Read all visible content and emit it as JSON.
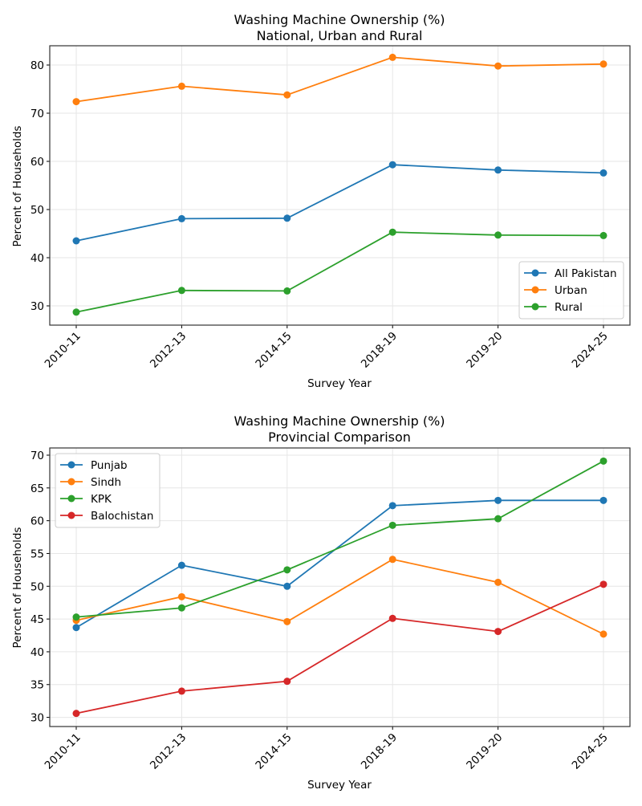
{
  "chart_data": [
    {
      "type": "line",
      "title": "Washing Machine Ownership (%)",
      "subtitle": "National, Urban and Rural",
      "xlabel": "Survey Year",
      "ylabel": "Percent of Households",
      "categories": [
        "2010-11",
        "2012-13",
        "2014-15",
        "2018-19",
        "2019-20",
        "2024-25"
      ],
      "ylim": [
        26,
        84
      ],
      "yticks": [
        30,
        40,
        50,
        60,
        70,
        80
      ],
      "grid": true,
      "legend_position": "bottom-right",
      "series": [
        {
          "name": "All Pakistan",
          "color": "#1f77b4",
          "values": [
            43.5,
            48.1,
            48.2,
            59.3,
            58.2,
            57.6
          ]
        },
        {
          "name": "Urban",
          "color": "#ff7f0e",
          "values": [
            72.4,
            75.6,
            73.8,
            81.6,
            79.8,
            80.2
          ]
        },
        {
          "name": "Rural",
          "color": "#2ca02c",
          "values": [
            28.7,
            33.2,
            33.1,
            45.3,
            44.7,
            44.6
          ]
        }
      ]
    },
    {
      "type": "line",
      "title": "Washing Machine Ownership (%)",
      "subtitle": "Provincial Comparison",
      "xlabel": "Survey Year",
      "ylabel": "Percent of Households",
      "categories": [
        "2010-11",
        "2012-13",
        "2014-15",
        "2018-19",
        "2019-20",
        "2024-25"
      ],
      "ylim": [
        28.6,
        71.1
      ],
      "yticks": [
        30,
        35,
        40,
        45,
        50,
        55,
        60,
        65,
        70
      ],
      "grid": true,
      "legend_position": "top-left",
      "series": [
        {
          "name": "Punjab",
          "color": "#1f77b4",
          "values": [
            43.7,
            53.2,
            50.0,
            62.3,
            63.1,
            63.1
          ]
        },
        {
          "name": "Sindh",
          "color": "#ff7f0e",
          "values": [
            44.8,
            48.4,
            44.6,
            54.1,
            50.6,
            42.7
          ]
        },
        {
          "name": "KPK",
          "color": "#2ca02c",
          "values": [
            45.3,
            46.7,
            52.5,
            59.3,
            60.3,
            69.1
          ]
        },
        {
          "name": "Balochistan",
          "color": "#d62728",
          "values": [
            30.6,
            34.0,
            35.5,
            45.1,
            43.1,
            50.3
          ]
        }
      ]
    }
  ]
}
